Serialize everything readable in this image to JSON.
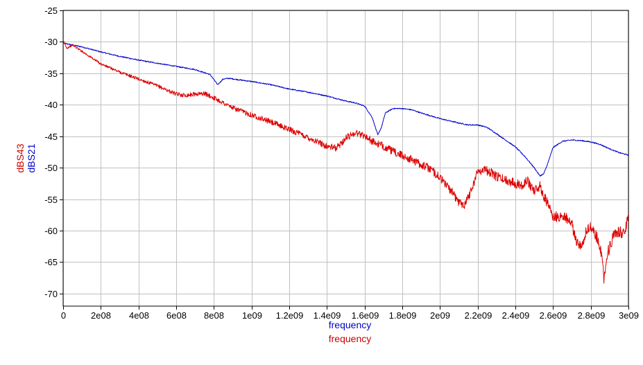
{
  "chart_data": {
    "type": "line",
    "title": "",
    "xlim": [
      0,
      3000000000
    ],
    "ylim": [
      -72,
      -25
    ],
    "grid": true,
    "x_ticks": [
      0,
      200000000,
      400000000,
      600000000,
      800000000,
      1000000000,
      1200000000,
      1400000000,
      1600000000,
      1800000000,
      2000000000,
      2200000000,
      2400000000,
      2600000000,
      2800000000,
      3000000000
    ],
    "x_tick_labels": [
      "0",
      "2e08",
      "4e08",
      "6e08",
      "8e08",
      "1e09",
      "1.2e09",
      "1.4e09",
      "1.6e09",
      "1.8e09",
      "2e09",
      "2.2e09",
      "2.4e09",
      "2.6e09",
      "2.8e09",
      "3e09"
    ],
    "y_ticks": [
      -25,
      -30,
      -35,
      -40,
      -45,
      -50,
      -55,
      -60,
      -65,
      -70
    ],
    "y_tick_labels": [
      "-25",
      "-30",
      "-35",
      "-40",
      "-45",
      "-50",
      "-55",
      "-60",
      "-65",
      "-70"
    ],
    "xlabels": [
      {
        "text": "frequency",
        "color": "#0000cc"
      },
      {
        "text": "frequency",
        "color": "#cc0000"
      }
    ],
    "ylabels": [
      {
        "text": "dBS43",
        "color": "#cc0000"
      },
      {
        "text": "dBS21",
        "color": "#0000cc"
      }
    ],
    "series": [
      {
        "name": "dBS21",
        "color": "#0000cc",
        "x": [
          0,
          50000000,
          100000000,
          200000000,
          300000000,
          400000000,
          500000000,
          600000000,
          700000000,
          780000000,
          820000000,
          850000000,
          880000000,
          950000000,
          1000000000,
          1100000000,
          1200000000,
          1300000000,
          1400000000,
          1500000000,
          1550000000,
          1600000000,
          1640000000,
          1670000000,
          1690000000,
          1710000000,
          1750000000,
          1800000000,
          1850000000,
          1900000000,
          2000000000,
          2100000000,
          2150000000,
          2200000000,
          2250000000,
          2300000000,
          2400000000,
          2450000000,
          2500000000,
          2530000000,
          2550000000,
          2570000000,
          2600000000,
          2650000000,
          2700000000,
          2750000000,
          2800000000,
          2850000000,
          2900000000,
          2950000000,
          3000000000
        ],
        "y": [
          -30.2,
          -30.5,
          -30.8,
          -31.6,
          -32.3,
          -32.9,
          -33.4,
          -33.9,
          -34.4,
          -35.2,
          -36.8,
          -35.9,
          -35.8,
          -36.1,
          -36.3,
          -36.8,
          -37.5,
          -38.0,
          -38.6,
          -39.4,
          -39.7,
          -40.2,
          -42.0,
          -44.8,
          -43.5,
          -41.3,
          -40.6,
          -40.6,
          -40.8,
          -41.3,
          -42.2,
          -42.9,
          -43.2,
          -43.2,
          -43.6,
          -44.6,
          -46.7,
          -48.2,
          -50.0,
          -51.3,
          -51.0,
          -49.5,
          -46.8,
          -45.8,
          -45.6,
          -45.7,
          -45.9,
          -46.3,
          -47.0,
          -47.6,
          -48.0
        ]
      },
      {
        "name": "dBS43",
        "color": "#dd0000",
        "x": [
          0,
          20000000,
          50000000,
          100000000,
          200000000,
          300000000,
          400000000,
          500000000,
          600000000,
          650000000,
          700000000,
          750000000,
          800000000,
          900000000,
          1000000000,
          1100000000,
          1200000000,
          1300000000,
          1400000000,
          1450000000,
          1500000000,
          1550000000,
          1600000000,
          1650000000,
          1700000000,
          1750000000,
          1800000000,
          1850000000,
          1900000000,
          1950000000,
          2000000000,
          2050000000,
          2100000000,
          2130000000,
          2160000000,
          2200000000,
          2230000000,
          2260000000,
          2300000000,
          2350000000,
          2400000000,
          2430000000,
          2460000000,
          2500000000,
          2530000000,
          2560000000,
          2600000000,
          2630000000,
          2660000000,
          2700000000,
          2720000000,
          2750000000,
          2770000000,
          2800000000,
          2840000000,
          2860000000,
          2870000000,
          2890000000,
          2920000000,
          2950000000,
          2980000000,
          3000000000
        ],
        "y": [
          -29.8,
          -31.0,
          -30.5,
          -31.5,
          -33.5,
          -34.8,
          -35.9,
          -37.0,
          -38.3,
          -38.5,
          -38.3,
          -38.2,
          -38.9,
          -40.5,
          -41.6,
          -42.7,
          -43.9,
          -45.2,
          -46.6,
          -46.9,
          -45.3,
          -44.4,
          -44.9,
          -46.0,
          -46.6,
          -47.4,
          -48.1,
          -48.7,
          -49.5,
          -50.2,
          -51.6,
          -53.3,
          -55.5,
          -55.8,
          -54.0,
          -50.6,
          -50.2,
          -50.6,
          -51.4,
          -52.0,
          -52.4,
          -52.8,
          -52.0,
          -53.6,
          -53.0,
          -55.0,
          -57.8,
          -57.8,
          -57.6,
          -59.0,
          -61.5,
          -62.5,
          -60.5,
          -59.3,
          -61.5,
          -64.0,
          -67.6,
          -63.5,
          -61.0,
          -60.2,
          -60.4,
          -57.3
        ]
      }
    ]
  }
}
